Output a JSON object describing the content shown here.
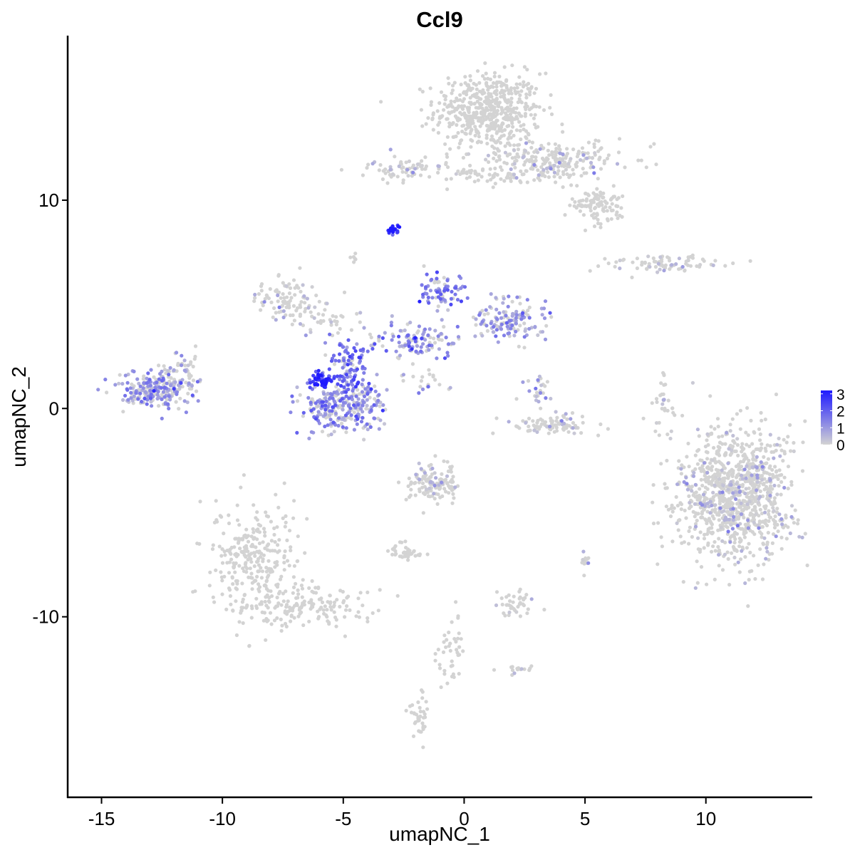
{
  "chart_data": {
    "type": "scatter",
    "title": "Ccl9",
    "xlabel": "umapNC_1",
    "ylabel": "umapNC_2",
    "xlim": [
      -16.4,
      14.4
    ],
    "ylim": [
      -18.7,
      17.9
    ],
    "x_ticks": [
      -15,
      -10,
      -5,
      0,
      5,
      10
    ],
    "y_ticks": [
      -10,
      0,
      10
    ],
    "grid": false,
    "legend": {
      "placement": "right",
      "labels": [
        "3",
        "2",
        "1",
        "0"
      ],
      "min": 0,
      "max": 3.2,
      "color_low": "#d3d3d3",
      "color_high": "#1f1aff"
    },
    "clusters": [
      {
        "cx": 1.0,
        "cy": 14.3,
        "sx": 1.1,
        "sy": 0.9,
        "n": 520,
        "expr": 0.0
      },
      {
        "cx": 3.5,
        "cy": 11.9,
        "sx": 1.4,
        "sy": 0.5,
        "n": 260,
        "expr": 0.05
      },
      {
        "cx": 5.5,
        "cy": 9.8,
        "sx": 0.6,
        "sy": 0.4,
        "n": 110,
        "expr": 0.0
      },
      {
        "cx": -2.4,
        "cy": 11.5,
        "sx": 1.0,
        "sy": 0.3,
        "n": 70,
        "expr": 0.1
      },
      {
        "cx": 1.0,
        "cy": 11.2,
        "sx": 0.8,
        "sy": 0.2,
        "n": 40,
        "expr": 0.0
      },
      {
        "cx": -2.9,
        "cy": 8.6,
        "sx": 0.15,
        "sy": 0.12,
        "n": 22,
        "expr": 3.0
      },
      {
        "cx": -4.6,
        "cy": 7.3,
        "sx": 0.1,
        "sy": 0.15,
        "n": 6,
        "expr": 0.1
      },
      {
        "cx": -7.3,
        "cy": 5.3,
        "sx": 0.6,
        "sy": 0.45,
        "n": 90,
        "expr": 0.05
      },
      {
        "cx": -5.9,
        "cy": 4.2,
        "sx": 0.8,
        "sy": 0.35,
        "n": 40,
        "expr": 0.3
      },
      {
        "cx": -4.8,
        "cy": 1.7,
        "sx": 0.45,
        "sy": 0.9,
        "n": 130,
        "expr": 1.6
      },
      {
        "cx": -5.9,
        "cy": 1.3,
        "sx": 0.25,
        "sy": 0.2,
        "n": 50,
        "expr": 2.6
      },
      {
        "cx": -5.7,
        "cy": 0.0,
        "sx": 0.6,
        "sy": 0.55,
        "n": 140,
        "expr": 1.3
      },
      {
        "cx": -4.2,
        "cy": 0.1,
        "sx": 0.55,
        "sy": 0.55,
        "n": 110,
        "expr": 1.1
      },
      {
        "cx": -2.0,
        "cy": 3.3,
        "sx": 1.1,
        "sy": 0.5,
        "n": 120,
        "expr": 1.1
      },
      {
        "cx": -0.9,
        "cy": 5.6,
        "sx": 0.5,
        "sy": 0.4,
        "n": 70,
        "expr": 1.5
      },
      {
        "cx": 1.9,
        "cy": 4.2,
        "sx": 0.7,
        "sy": 0.5,
        "n": 140,
        "expr": 0.9
      },
      {
        "cx": -1.6,
        "cy": 1.3,
        "sx": 0.5,
        "sy": 0.35,
        "n": 20,
        "expr": 0.5
      },
      {
        "cx": 3.5,
        "cy": -0.8,
        "sx": 1.0,
        "sy": 0.25,
        "n": 90,
        "expr": 0.1
      },
      {
        "cx": 3.1,
        "cy": 0.8,
        "sx": 0.3,
        "sy": 0.4,
        "n": 25,
        "expr": 0.6
      },
      {
        "cx": 8.4,
        "cy": 6.9,
        "sx": 1.2,
        "sy": 0.2,
        "n": 80,
        "expr": 0.05
      },
      {
        "cx": 8.3,
        "cy": 0.3,
        "sx": 0.2,
        "sy": 0.7,
        "n": 30,
        "expr": 0.05
      },
      {
        "cx": 11.2,
        "cy": -4.2,
        "sx": 1.15,
        "sy": 1.6,
        "n": 1000,
        "expr": 0.02
      },
      {
        "cx": -12.8,
        "cy": 0.9,
        "sx": 0.75,
        "sy": 0.45,
        "n": 240,
        "expr": 0.9
      },
      {
        "cx": -11.6,
        "cy": 1.9,
        "sx": 0.4,
        "sy": 0.45,
        "n": 40,
        "expr": 0.6
      },
      {
        "cx": -8.6,
        "cy": -7.4,
        "sx": 0.9,
        "sy": 1.5,
        "n": 300,
        "expr": 0.0
      },
      {
        "cx": -6.4,
        "cy": -9.6,
        "sx": 1.3,
        "sy": 0.5,
        "n": 140,
        "expr": 0.0
      },
      {
        "cx": -1.3,
        "cy": -3.6,
        "sx": 0.55,
        "sy": 0.45,
        "n": 130,
        "expr": 0.05
      },
      {
        "cx": -2.3,
        "cy": -6.9,
        "sx": 0.35,
        "sy": 0.2,
        "n": 40,
        "expr": 0.0
      },
      {
        "cx": -1.9,
        "cy": -14.8,
        "sx": 0.2,
        "sy": 0.5,
        "n": 40,
        "expr": 0.0
      },
      {
        "cx": 2.1,
        "cy": -9.5,
        "sx": 0.4,
        "sy": 0.3,
        "n": 40,
        "expr": 0.05
      },
      {
        "cx": 5.0,
        "cy": -7.3,
        "sx": 0.1,
        "sy": 0.3,
        "n": 12,
        "expr": 0.2
      },
      {
        "cx": -0.5,
        "cy": -11.5,
        "sx": 0.35,
        "sy": 0.8,
        "n": 40,
        "expr": 0.0
      },
      {
        "cx": 2.1,
        "cy": -12.5,
        "sx": 0.4,
        "sy": 0.15,
        "n": 15,
        "expr": 0.05
      }
    ]
  }
}
